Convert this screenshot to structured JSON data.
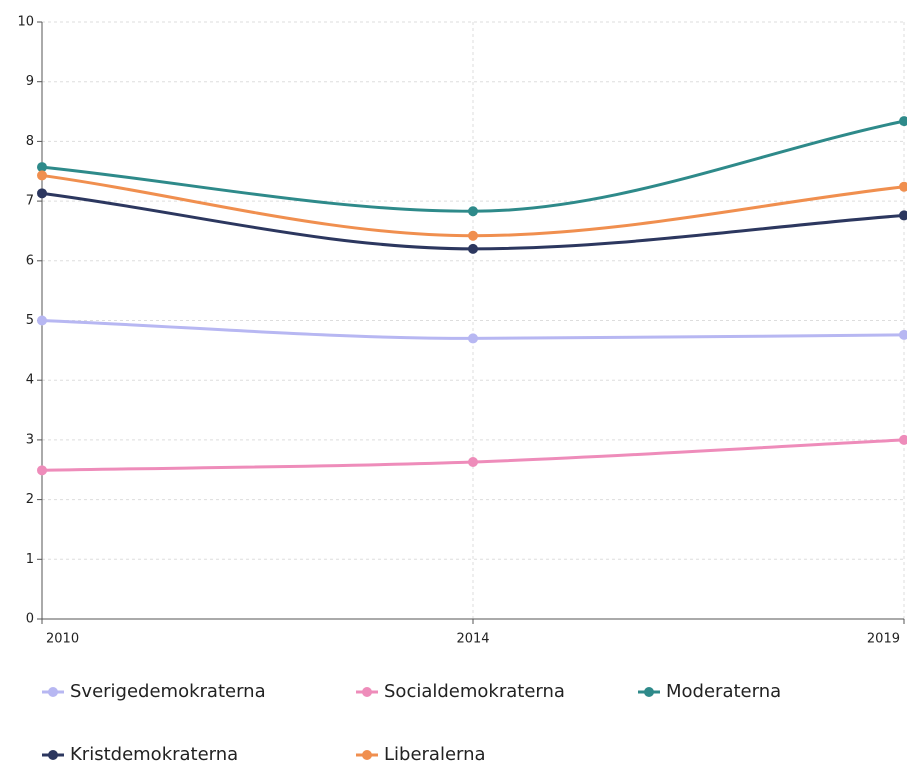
{
  "chart_data": {
    "type": "line",
    "categories": [
      "2010",
      "2014",
      "2019"
    ],
    "ylim": [
      0,
      10
    ],
    "yticks": [
      0,
      1,
      2,
      3,
      4,
      5,
      6,
      7,
      8,
      9,
      10
    ],
    "grid": true,
    "legend": "bottom",
    "series": [
      {
        "name": "Sverigedemokraterna",
        "color": "#b7b7f2",
        "values": [
          5.0,
          4.7,
          4.76
        ]
      },
      {
        "name": "Socialdemokraterna",
        "color": "#ee8cba",
        "values": [
          2.49,
          2.63,
          3.0
        ]
      },
      {
        "name": "Moderaterna",
        "color": "#2e8a8a",
        "values": [
          7.57,
          6.83,
          8.34
        ]
      },
      {
        "name": "Kristdemokraterna",
        "color": "#2c375f",
        "values": [
          7.13,
          6.2,
          6.76
        ]
      },
      {
        "name": "Liberalerna",
        "color": "#f08f4f",
        "values": [
          7.43,
          6.42,
          7.24
        ]
      }
    ]
  }
}
